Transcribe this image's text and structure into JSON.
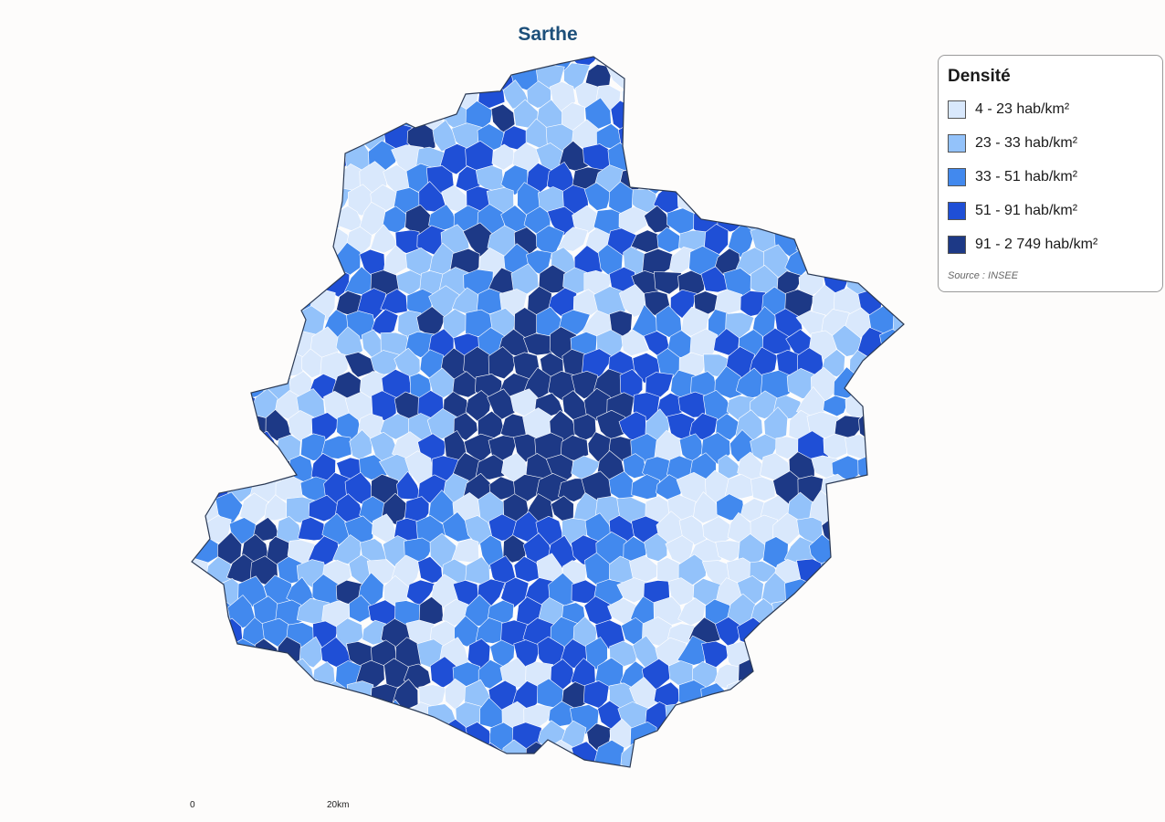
{
  "map": {
    "title": "Sarthe",
    "boundary_color": "#2b3a55",
    "background_color": "#fdfcfb"
  },
  "legend": {
    "title": "Densité",
    "classes": [
      {
        "label": "4 - 23 hab/km²",
        "color": "#d9e8fc"
      },
      {
        "label": "23 - 33 hab/km²",
        "color": "#93c2fa"
      },
      {
        "label": "33 - 51 hab/km²",
        "color": "#4289ee"
      },
      {
        "label": "51 - 91 hab/km²",
        "color": "#1f4fd6"
      },
      {
        "label": "91 - 2 749 hab/km²",
        "color": "#1d3986"
      }
    ],
    "source": "Source : INSEE"
  },
  "scale": {
    "start_label": "0",
    "end_label": "20km"
  }
}
